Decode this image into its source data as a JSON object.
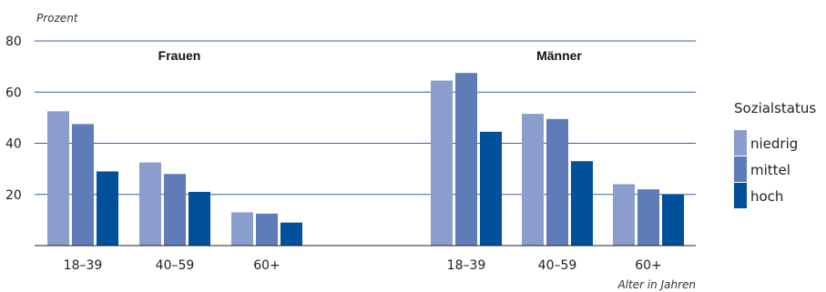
{
  "chart_data": {
    "type": "bar",
    "ylabel": "Prozent",
    "xlabel": "Alter in Jahren",
    "ylim": [
      0,
      80
    ],
    "yticks": [
      20,
      40,
      60,
      80
    ],
    "grid": true,
    "legend_placement": "right",
    "groups": [
      {
        "name": "Frauen",
        "categories": [
          "18–39",
          "40–59",
          "60+"
        ],
        "series": [
          {
            "name": "niedrig",
            "values": [
              52.5,
              32.5,
              13
            ]
          },
          {
            "name": "mittel",
            "values": [
              47.5,
              28,
              12.5
            ]
          },
          {
            "name": "hoch",
            "values": [
              29,
              21,
              9
            ]
          }
        ]
      },
      {
        "name": "Männer",
        "categories": [
          "18–39",
          "40–59",
          "60+"
        ],
        "series": [
          {
            "name": "niedrig",
            "values": [
              64.5,
              51.5,
              24
            ]
          },
          {
            "name": "mittel",
            "values": [
              67.5,
              49.5,
              22
            ]
          },
          {
            "name": "hoch",
            "values": [
              44.5,
              33,
              20
            ]
          }
        ]
      }
    ],
    "legend": {
      "title": "Sozialstatus",
      "entries": [
        "niedrig",
        "mittel",
        "hoch"
      ]
    },
    "colors": {
      "niedrig": "#8a9dcc",
      "mittel": "#5f7cb8",
      "hoch": "#00509b",
      "grid": "#3a5ea4",
      "axis": "#222222"
    }
  }
}
